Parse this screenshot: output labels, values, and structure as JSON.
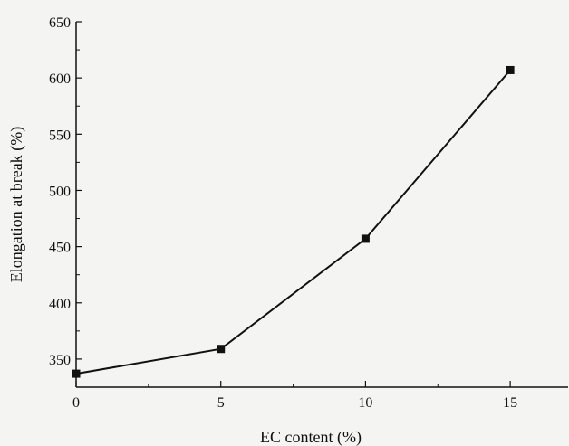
{
  "chart_data": {
    "type": "line",
    "xlabel": "EC content (%)",
    "ylabel": "Elongation at break (%)",
    "xlim": [
      0,
      17
    ],
    "ylim": [
      325,
      650
    ],
    "xticks": [
      0,
      5,
      10,
      15
    ],
    "yticks": [
      350,
      400,
      450,
      500,
      550,
      600,
      650
    ],
    "x": [
      0,
      5,
      10,
      15
    ],
    "series": [
      {
        "values": [
          337,
          359,
          457,
          607
        ]
      }
    ],
    "grid": false,
    "marker": "square",
    "colors": {
      "line": "#111111",
      "axis": "#111111"
    }
  }
}
